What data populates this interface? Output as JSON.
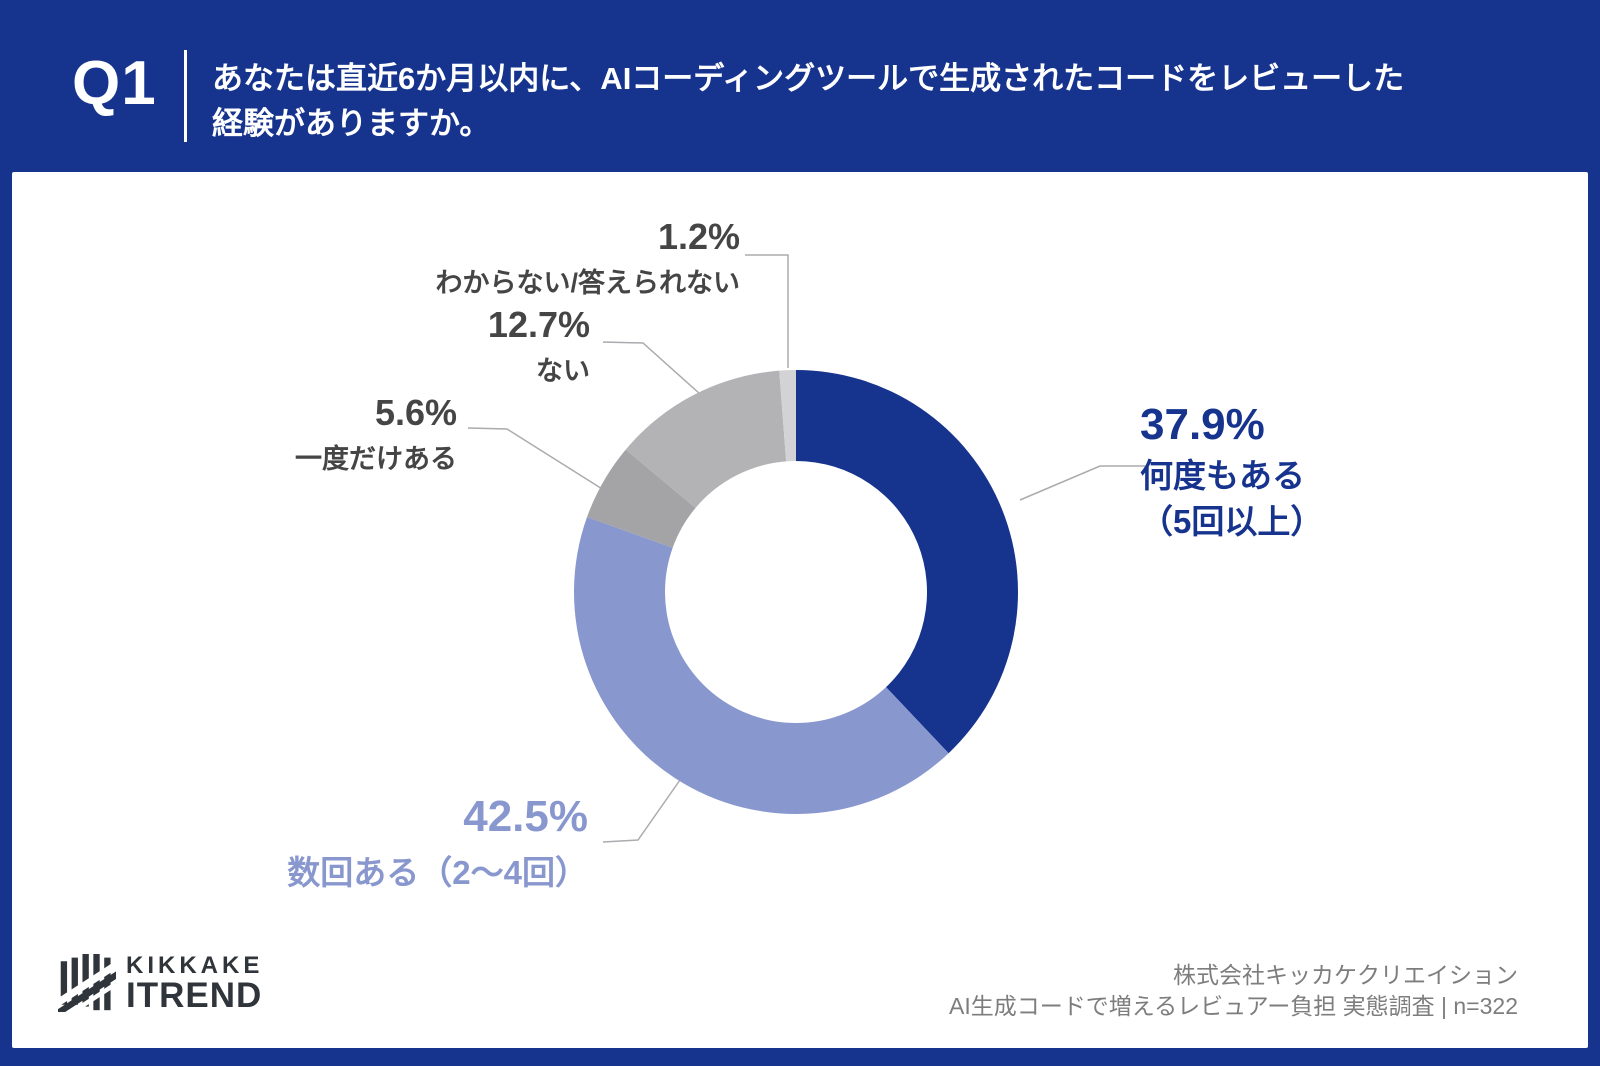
{
  "header": {
    "question_number": "Q1",
    "question_lines": [
      "あなたは直近6か月以内に、AIコーディングツールで生成されたコードをレビューした",
      "経験がありますか。"
    ]
  },
  "chart_data": {
    "type": "pie",
    "subtype": "donut",
    "start_angle": "top",
    "direction": "clockwise",
    "unit": "%",
    "segments": [
      {
        "label": "何度もある（5回以上）",
        "value": 37.9,
        "color": "#16338E"
      },
      {
        "label": "数回ある（2～4回）",
        "value": 42.5,
        "color": "#8897CE"
      },
      {
        "label": "一度だけある",
        "value": 5.6,
        "color": "#A4A4A7"
      },
      {
        "label": "ない",
        "value": 12.7,
        "color": "#B3B3B6"
      },
      {
        "label": "わからない/答えられない",
        "value": 1.2,
        "color": "#D3D3D6"
      }
    ]
  },
  "callouts": {
    "seg1": {
      "value": "37.9%",
      "name_line1": "何度もある",
      "name_line2": "（5回以上）"
    },
    "seg2": {
      "value": "42.5%",
      "name": "数回ある（2～4回）"
    },
    "seg3": {
      "value": "5.6%",
      "name": "一度だけある"
    },
    "seg4": {
      "value": "12.7%",
      "name": "ない"
    },
    "seg5": {
      "value": "1.2%",
      "name": "わからない/答えられない"
    }
  },
  "footer": {
    "logo_line1": "KIKKAKE",
    "logo_line2": "ITREND",
    "company": "株式会社キッカケクリエイション",
    "survey_note": "AI生成コードで増えるレビュアー負担 実態調査 | n=322"
  },
  "colors": {
    "background_navy": "#16338E",
    "card_white": "#FFFFFF",
    "callout_navy": "#16338E",
    "callout_periwinkle": "#8897CE",
    "callout_gray": "#454545",
    "leader_line": "#ABABAF",
    "footer_text": "#7D7D7D",
    "logo_charcoal": "#30353B"
  }
}
